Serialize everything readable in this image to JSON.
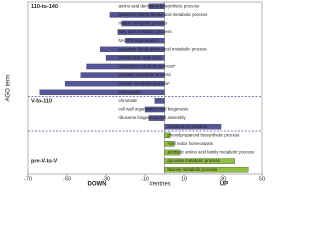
{
  "chart_data": {
    "type": "bar",
    "orientation": "horizontal",
    "x_label": "#entries",
    "y_label": "AGO term",
    "left_note": "DOWN",
    "right_note": "UP",
    "xlim": [
      -70,
      50
    ],
    "xticks": [
      -70,
      -50,
      -30,
      -10,
      10,
      30,
      50
    ],
    "groups": [
      {
        "name": "110-to-140",
        "color": "#55559a",
        "categories": [
          "amino acid derivative biosynthetic process",
          "glutamine family amino acid metabolic process",
          "malate metabolic process",
          "fatty acid metabolic process",
          "NADPH regeneration",
          "aspartate family amino acid metabolic process",
          "tricarboxylic acid cycle",
          "nucleotide metabolic process*",
          "pyruvate metabolic process",
          "hexose metabolic process*",
          "chloroplast*"
        ],
        "values": [
          -8,
          -28,
          -22,
          -24,
          -20,
          -33,
          -30,
          -40,
          -43,
          -51,
          -64
        ]
      },
      {
        "name": "V-to-110",
        "color": "#55559a",
        "categories": [
          "chromatin",
          "cell wall organization and biogenesis",
          "ribosome biogenesis and assembly",
          "response to stimulus"
        ],
        "values": [
          -5,
          -10,
          -8,
          29
        ]
      },
      {
        "name": "pre-V-to-V",
        "color": "#8fbf3f",
        "categories": [
          "phenylpropanoid biosynthetic process",
          "*cell redox homeostasis",
          "aromatic amino acid family metabolic process",
          "pyruvate metabolic process",
          "hexose metabolic process"
        ],
        "values": [
          3,
          5,
          8,
          36,
          43
        ]
      }
    ]
  }
}
